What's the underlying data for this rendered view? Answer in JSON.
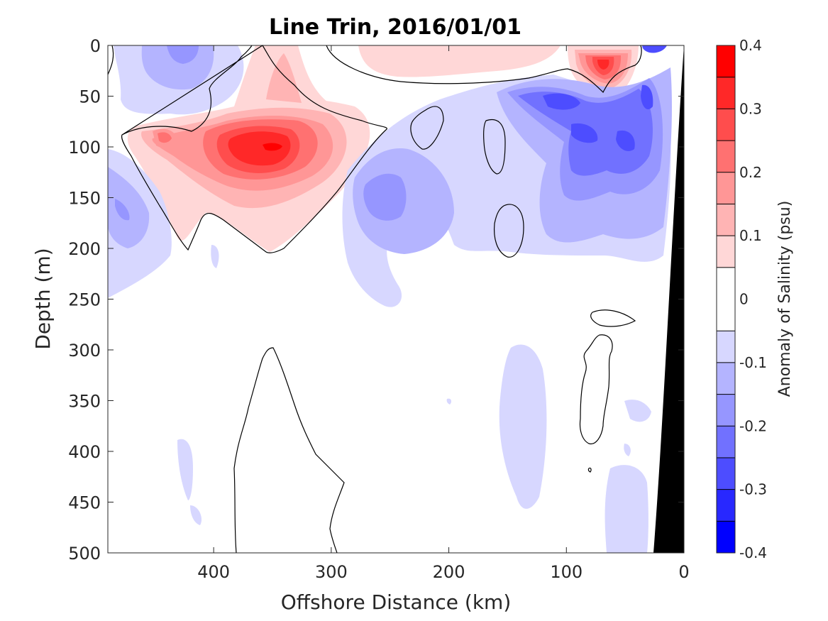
{
  "chart_data": {
    "type": "heatmap",
    "title": "Line Trin, 2016/01/01",
    "xlabel": "Offshore Distance (km)",
    "ylabel": "Depth (m)",
    "x_ticks": [
      "400",
      "300",
      "200",
      "100",
      "0"
    ],
    "y_ticks": [
      "0",
      "50",
      "100",
      "150",
      "200",
      "250",
      "300",
      "350",
      "400",
      "450",
      "500"
    ],
    "xlim": [
      490,
      0
    ],
    "ylim": [
      500,
      0
    ],
    "colorbar": {
      "label": "Anomaly of Salinity (psu)",
      "ticks": [
        "0.4",
        "0.3",
        "0.2",
        "0.1",
        "0",
        "-0.1",
        "-0.2",
        "-0.3",
        "-0.4"
      ],
      "levels": [
        0.4,
        0.35,
        0.3,
        0.25,
        0.2,
        0.15,
        0.1,
        0.05,
        -0.05,
        -0.1,
        -0.15,
        -0.2,
        -0.25,
        -0.3,
        -0.35,
        -0.4
      ],
      "colors": [
        "#ff0000",
        "#ff2828",
        "#ff4d4d",
        "#ff7171",
        "#ff9696",
        "#ffb4b4",
        "#ffd7d7",
        "#ffffff",
        "#ffffff",
        "#d7d7ff",
        "#b4b4ff",
        "#9696ff",
        "#7171ff",
        "#4d4dff",
        "#2828ff",
        "#0000ff"
      ]
    },
    "features": [
      {
        "name": "positive-core",
        "x": 350,
        "depth": 100,
        "value": 0.35
      },
      {
        "name": "positive-patch-left",
        "x": 440,
        "depth": 90,
        "value": 0.2
      },
      {
        "name": "positive-surface-upper",
        "x": 240,
        "depth": 15,
        "value": 0.1
      },
      {
        "name": "positive-surface-peak",
        "x": 70,
        "depth": 20,
        "value": 0.35
      },
      {
        "name": "negative-surface-west",
        "x": 430,
        "depth": 30,
        "value": -0.2
      },
      {
        "name": "negative-deep-west",
        "x": 470,
        "depth": 165,
        "value": -0.2
      },
      {
        "name": "negative-midcore",
        "x": 250,
        "depth": 150,
        "value": -0.2
      },
      {
        "name": "negative-nearshore-core",
        "x": 90,
        "depth": 80,
        "value": -0.3
      },
      {
        "name": "negative-nearshore-core-2",
        "x": 40,
        "depth": 60,
        "value": -0.3
      },
      {
        "name": "negative-deep-band",
        "x": 140,
        "depth": 390,
        "value": -0.1
      },
      {
        "name": "negative-deep-nearshore",
        "x": 40,
        "depth": 450,
        "value": -0.1
      }
    ],
    "bathymetry": {
      "color": "#000000",
      "surface_x": 0,
      "bottom_x": 25
    }
  }
}
